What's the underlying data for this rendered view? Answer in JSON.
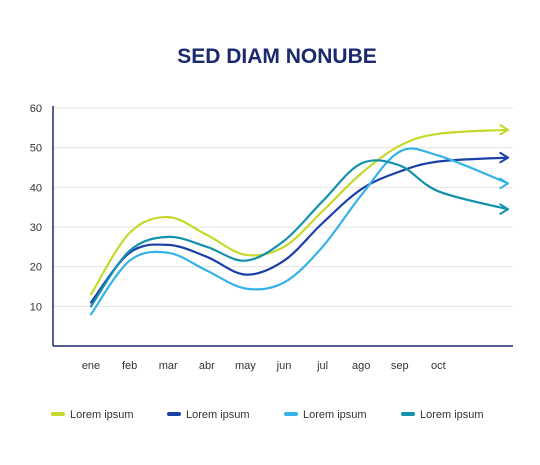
{
  "chart_data": {
    "type": "line",
    "title": "SED DIAM NONUBE",
    "xlabel": "",
    "ylabel": "",
    "categories": [
      "ene",
      "feb",
      "mar",
      "abr",
      "may",
      "jun",
      "jul",
      "ago",
      "sep",
      "oct"
    ],
    "ylim": [
      0,
      60
    ],
    "yticks": [
      10,
      20,
      30,
      40,
      50,
      60
    ],
    "grid": true,
    "legend_position": "bottom",
    "series": [
      {
        "name": "Lorem ipsum",
        "color": "#c5d82b",
        "values": [
          13,
          28.5,
          32.5,
          28,
          23,
          25,
          34,
          43.5,
          50.5,
          53.5
        ],
        "end_value": 54.5
      },
      {
        "name": "Lorem ipsum",
        "color": "#1c3fa8",
        "values": [
          11,
          23.5,
          25.5,
          22.5,
          18,
          21.5,
          31,
          39.5,
          44,
          46.5
        ],
        "end_value": 47.5
      },
      {
        "name": "Lorem ipsum",
        "color": "#35b3e8",
        "values": [
          8,
          21.5,
          23.5,
          19,
          14.5,
          16,
          25,
          38,
          49,
          48
        ],
        "end_value": 41
      },
      {
        "name": "Lorem ipsum",
        "color": "#1491ad",
        "values": [
          10,
          24,
          27.5,
          25,
          21.5,
          26.5,
          36.5,
          46,
          45.5,
          39
        ],
        "end_value": 34.5
      }
    ]
  }
}
